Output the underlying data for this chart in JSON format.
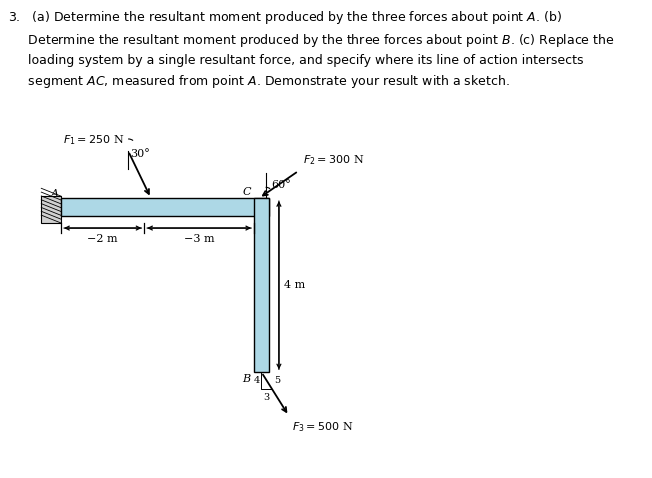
{
  "beam_color": "#add8e6",
  "background_color": "#ffffff",
  "F1_label": "$F_1 = 250$ N",
  "F2_label": "$F_2 = 300$ N",
  "F3_label": "$F_3 = 500$ N",
  "angle1_label": "30°",
  "angle2_label": "60°",
  "dist_2m": "2 m",
  "dist_3m": "3 m",
  "dist_4m": "4 m",
  "point_A": "A",
  "point_B": "B",
  "point_C": "C",
  "tri_4": "4",
  "tri_3": "3",
  "tri_5": "5",
  "problem_line1": "3.   (a) Determine the resultant moment produced by the three forces about point ",
  "problem_line1b": "A",
  "problem_line1c": ". (b)",
  "problem_line2": "     Determine the resultant moment produced by the three forces about point ",
  "problem_line2b": "B",
  "problem_line2c": ". (c) Replace the",
  "problem_line3": "     loading system by a single resultant force, and specify where its line of action intersects",
  "problem_line4": "     segment ",
  "problem_line4b": "AC",
  "problem_line4c": ", measured from point ",
  "problem_line4d": "A",
  "problem_line4e": ". Demonstrate your result with a sketch."
}
